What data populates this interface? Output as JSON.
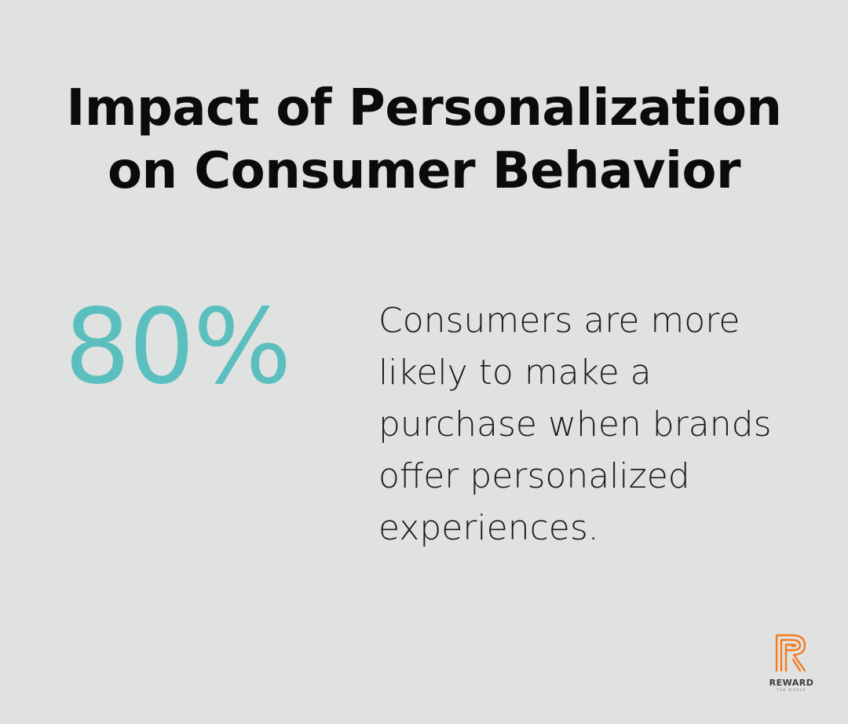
{
  "title": "Impact of Personalization\non Consumer Behavior",
  "stat": {
    "value": "80%",
    "description": "Consumers are more\nlikely to make a\npurchase when brands\noffer personalized\nexperiences."
  },
  "logo": {
    "icon": "reward-r-icon",
    "name": "REWARD",
    "tagline": "THE WORLD",
    "color": "#f47b20"
  },
  "colors": {
    "background": "#dfe2e0",
    "accent": "#5bbfbf",
    "text": "#0b0b0b"
  }
}
